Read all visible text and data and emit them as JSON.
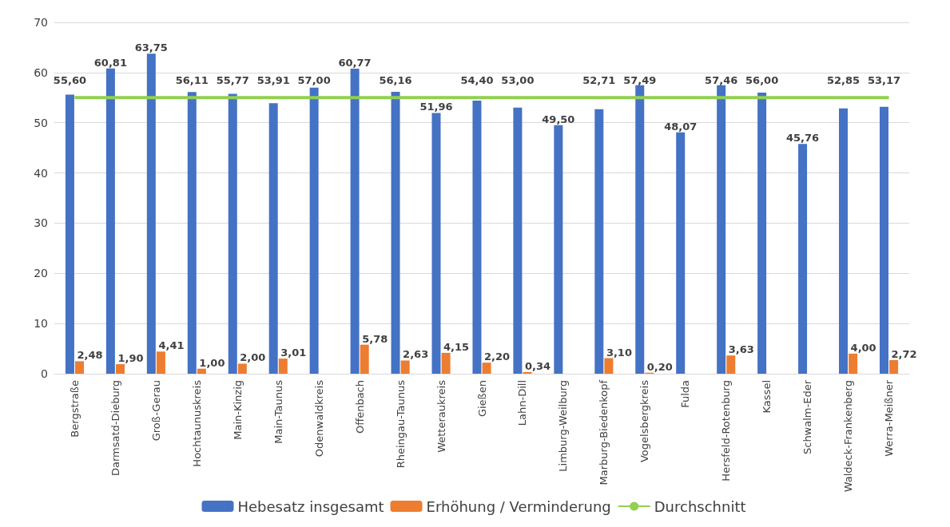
{
  "chart_data": {
    "type": "bar",
    "categories": [
      "Bergstraße",
      "Darmsatd-Dieburg",
      "Groß-Gerau",
      "Hochtaunuskreis",
      "Main-Kinzig",
      "Main-Taunus",
      "Odenwaldkreis",
      "Offenbach",
      "Rheingau-Taunus",
      "Wetteraukreis",
      "Gießen",
      "Lahn-Dill",
      "Limburg-Weilburg",
      "Marburg-Biedenkopf",
      "Vogelsbergkreis",
      "Fulda",
      "Hersfeld-Rotenburg",
      "Kassel",
      "Schwalm-Eder",
      "Waldeck-Frankenberg",
      "Werra-Meißner"
    ],
    "series": [
      {
        "name": "Hebesatz insgesamt",
        "color": "#4472c4",
        "values": [
          55.6,
          60.81,
          63.75,
          56.11,
          55.77,
          53.91,
          57.0,
          60.77,
          56.16,
          51.96,
          54.4,
          53.0,
          49.5,
          52.71,
          57.49,
          48.07,
          57.46,
          56.0,
          45.76,
          52.85,
          53.17
        ],
        "value_labels": [
          "55,60",
          "60,81",
          "63,75",
          "56,11",
          "55,77",
          "53,91",
          "57,00",
          "60,77",
          "56,16",
          "51,96",
          "54,40",
          "53,00",
          "49,50",
          "52,71",
          "57,49",
          "48,07",
          "57,46",
          "56,00",
          "45,76",
          "52,85",
          "53,17"
        ]
      },
      {
        "name": "Erhöhung / Verminderung",
        "color": "#ed7d31",
        "values": [
          2.48,
          1.9,
          4.41,
          1.0,
          2.0,
          3.01,
          null,
          5.78,
          2.63,
          4.15,
          2.2,
          0.34,
          null,
          3.1,
          0.2,
          null,
          3.63,
          null,
          null,
          4.0,
          2.72
        ],
        "value_labels": [
          "2,48",
          "1,90",
          "4,41",
          "1,00",
          "2,00",
          "3,01",
          null,
          "5,78",
          "2,63",
          "4,15",
          "2,20",
          "0,34",
          null,
          "3,10",
          "0,20",
          null,
          "3,63",
          null,
          null,
          "4,00",
          "2,72"
        ]
      },
      {
        "name": "Durchschnitt",
        "type": "line",
        "color": "#92d050",
        "values": [
          55,
          55,
          55,
          55,
          55,
          55,
          55,
          55,
          55,
          55,
          55,
          55,
          55,
          55,
          55,
          55,
          55,
          55,
          55,
          55,
          55
        ]
      }
    ],
    "ylim": [
      0,
      70
    ],
    "yticks": [
      0,
      10,
      20,
      30,
      40,
      50,
      60,
      70
    ],
    "grid": "y",
    "legend": "bottom",
    "marker": "none",
    "line_style": "solid"
  }
}
